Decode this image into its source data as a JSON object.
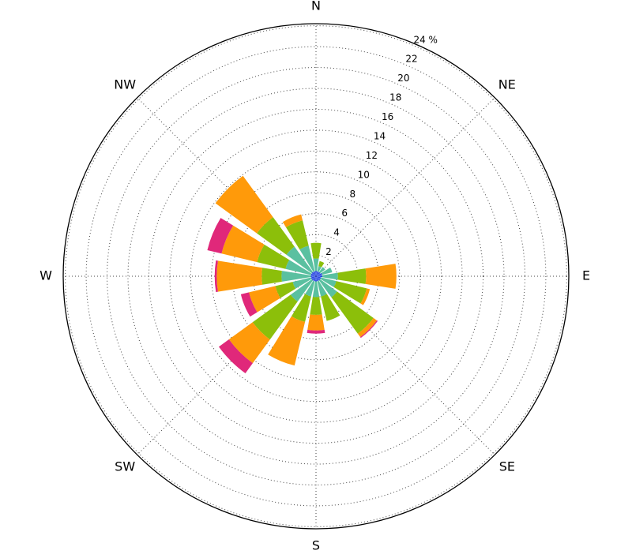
{
  "chart_data": {
    "type": "windrose",
    "categories": [
      "N",
      null,
      "NE",
      null,
      "E",
      null,
      "SE",
      null,
      "S",
      null,
      "SW",
      null,
      "W",
      null,
      "NW",
      null
    ],
    "series": [
      {
        "color": "#1f3fe0",
        "values": [
          0.5,
          0.5,
          0.5,
          0.6,
          0.6,
          0.5,
          0.5,
          0.5,
          0.5,
          0.5,
          0.5,
          0.5,
          0.5,
          0.5,
          0.5,
          0.5
        ]
      },
      {
        "color": "#5ac0a0",
        "values": [
          1.2,
          0.5,
          0.6,
          1.0,
          1.5,
          1.5,
          2.0,
          1.5,
          1.5,
          1.5,
          2.5,
          1.8,
          2.8,
          2.5,
          3.0,
          2.5
        ]
      },
      {
        "color": "#8cbf0a",
        "values": [
          1.5,
          0.5,
          0,
          0,
          2.7,
          3.0,
          4.3,
          2.4,
          1.7,
          2.5,
          4.5,
          1.7,
          1.9,
          2.8,
          3.5,
          2.5
        ]
      },
      {
        "color": "#ff9a0a",
        "values": [
          0,
          0,
          0,
          0,
          2.9,
          0.3,
          0.4,
          0,
          1.5,
          4.3,
          2.8,
          2.6,
          4.3,
          3.5,
          4.9,
          0.6
        ]
      },
      {
        "color": "#e0287a",
        "values": [
          0,
          0,
          0,
          0,
          0,
          0,
          0.1,
          0,
          0.3,
          0,
          1.2,
          0.8,
          0.2,
          1.4,
          0,
          0
        ]
      }
    ],
    "rlim": [
      0,
      24.2
    ],
    "yticks": [
      2,
      4,
      6,
      8,
      10,
      12,
      14,
      16,
      18,
      20,
      22,
      {
        "value": 24,
        "label": "24 %"
      }
    ],
    "grid": true
  }
}
